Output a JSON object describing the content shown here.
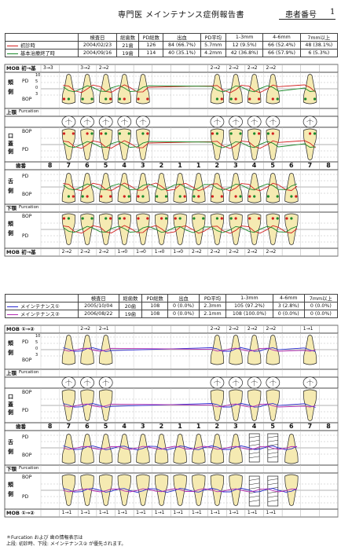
{
  "header": {
    "title": "専門医 メインテナンス症例報告書",
    "patient_id_label": "患者番号",
    "patient_number": "1"
  },
  "summary1": {
    "columns": [
      "検査日",
      "総歯数",
      "PD総数",
      "出血",
      "PD平均",
      "1-3mm",
      "4-6mm",
      "7mm以上"
    ],
    "rows": [
      {
        "label": "初診時",
        "color": "#d21e1e",
        "date": "2004/02/23",
        "teeth": "21歯",
        "pd_total": "126",
        "bleed": "84 (66.7%)",
        "pd_avg": "5.7mm",
        "r13": "12 (9.5%)",
        "r46": "66 (52.4%)",
        "r7": "48 (38.1%)"
      },
      {
        "label": "基本治療終了時",
        "color": "#1a8a2a",
        "date": "2004/09/16",
        "teeth": "19歯",
        "pd_total": "114",
        "bleed": "40 (35.1%)",
        "pd_avg": "4.2mm",
        "r13": "42 (36.8%)",
        "r46": "66 (57.9%)",
        "r7": "6 (5.3%)"
      }
    ]
  },
  "summary2": {
    "rows": [
      {
        "label": "メインテナンス①",
        "color": "#2a2ad2",
        "date": "2005/10/04",
        "teeth": "20歯",
        "pd_total": "108",
        "bleed": "0 (0.0%)",
        "pd_avg": "2.3mm",
        "r13": "105 (97.2%)",
        "r46": "3 (2.8%)",
        "r7": "0 (0.0%)"
      },
      {
        "label": "メインテナンス②",
        "color": "#b22ab2",
        "date": "2006/08/22",
        "teeth": "19歯",
        "pd_total": "108",
        "bleed": "0 (0.0%)",
        "pd_avg": "2.1mm",
        "r13": "108 (100.0%)",
        "r46": "0 (0.0%)",
        "r7": "0 (0.0%)"
      }
    ]
  },
  "labels": {
    "mob1": "MOB 初→基",
    "mob2": "MOB ①→②",
    "buccal": "頬側",
    "palatal": "口蓋側",
    "lingual": "舌側",
    "upper_furcation": "上顎",
    "lower_furcation": "下顎",
    "furcation": "Furcation",
    "tooth_number_label": "歯番",
    "pd": "PD",
    "bop": "BOP",
    "scale": [
      "10",
      "5",
      "0",
      "3"
    ]
  },
  "tooth_numbers": [
    "8",
    "7",
    "6",
    "5",
    "4",
    "3",
    "2",
    "1",
    "1",
    "2",
    "3",
    "4",
    "5",
    "6",
    "7",
    "8"
  ],
  "mob_upper1": [
    "3→3",
    "",
    "3→2",
    "2→2",
    "",
    "",
    "",
    "",
    "",
    "2→2",
    "2→2",
    "2→2",
    "2→2",
    "",
    "",
    ""
  ],
  "mob_lower1": [
    "",
    "2→2",
    "2→2",
    "2→2",
    "1→0",
    "1→0",
    "1→0",
    "1→0",
    "2→2",
    "2→2",
    "2→2",
    "2→2",
    "2→2",
    "",
    "",
    ""
  ],
  "mob_upper2": [
    "",
    "",
    "2→2",
    "2→1",
    "",
    "",
    "",
    "",
    "",
    "2→2",
    "2→2",
    "2→2",
    "2→2",
    "",
    "1→1",
    ""
  ],
  "mob_lower2": [
    "",
    "1→1",
    "1→1",
    "1→1",
    "1→1",
    "1→1",
    "1→1",
    "1→1",
    "1→1",
    "1→1",
    "1→1",
    "1→1",
    "1→1",
    "",
    "",
    ""
  ],
  "footnote": {
    "line1": "＊Furcation および 歯の情報表示は",
    "line2": "上段: 初診時、下段: メインテナンス② が優先されます。"
  }
}
